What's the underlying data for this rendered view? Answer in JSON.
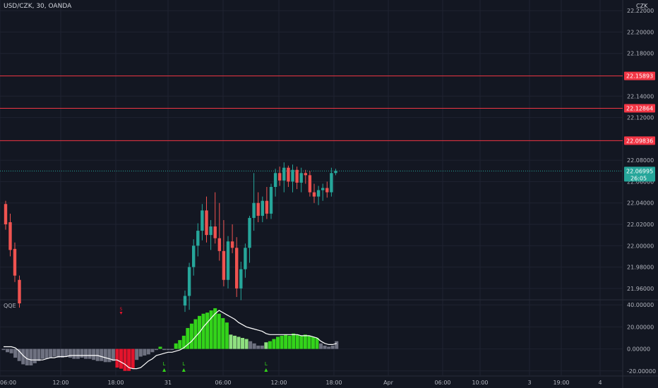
{
  "header": {
    "symbol_label": "USD/CZK, 30, OANDA",
    "currency": "CZK"
  },
  "indicator": {
    "label": "QQE"
  },
  "colors": {
    "background": "#131722",
    "grid": "#1f2331",
    "text": "#b2b5be",
    "up_candle": "#26a69a",
    "down_candle": "#ef5350",
    "bright_up": "#43d11f",
    "level_line": "#f23645",
    "current_price": "#26a69a",
    "qqe_up": "#33d31a",
    "qqe_light": "#8fe080",
    "qqe_down": "#e3142c",
    "qqe_neutral": "#6e7180",
    "qqe_line": "#ffffff"
  },
  "chart_data": [
    {
      "type": "candlestick",
      "ylim": [
        21.95,
        22.23
      ],
      "yticks": [
        "22.22000",
        "22.20000",
        "22.18000",
        "22.14000",
        "22.12000",
        "22.08000",
        "22.06000",
        "22.04000",
        "22.02000",
        "22.00000",
        "21.98000",
        "21.96000"
      ],
      "xticks": [
        "06:00",
        "12:00",
        "18:00",
        "31",
        "06:00",
        "12:00",
        "18:00",
        "Apr",
        "06:00",
        "10:00",
        "3",
        "19:00",
        "4"
      ],
      "levels": [
        {
          "value": 22.15893,
          "label": "22.15893"
        },
        {
          "value": 22.12864,
          "label": "22.12864"
        },
        {
          "value": 22.09836,
          "label": "22.09836"
        }
      ],
      "current_price": {
        "value": 22.06995,
        "label": "22.06995",
        "countdown": "26:05"
      },
      "candles_part1": [
        [
          22.039,
          22.042,
          22.015,
          22.02
        ],
        [
          22.022,
          22.03,
          21.99,
          21.996
        ],
        [
          21.997,
          22.003,
          21.966,
          21.972
        ],
        [
          21.968,
          21.972,
          21.942,
          21.946
        ]
      ],
      "candles_part2": [
        [
          21.944,
          21.958,
          21.938,
          21.953
        ],
        [
          21.953,
          21.984,
          21.94,
          21.98
        ],
        [
          21.98,
          22.006,
          21.972,
          22.0
        ],
        [
          22.0,
          22.021,
          21.99,
          22.014
        ],
        [
          22.014,
          22.039,
          22.005,
          22.033
        ],
        [
          22.033,
          22.046,
          22.003,
          22.01
        ],
        [
          22.01,
          22.024,
          21.996,
          22.018
        ],
        [
          22.018,
          22.05,
          22.002,
          22.007
        ],
        [
          22.007,
          22.04,
          21.986,
          21.995
        ],
        [
          21.995,
          22.024,
          21.962,
          21.968
        ],
        [
          21.968,
          22.009,
          21.96,
          22.004
        ],
        [
          22.004,
          22.02,
          21.993,
          21.998
        ],
        [
          21.998,
          22.008,
          21.952,
          21.96
        ],
        [
          21.96,
          21.985,
          21.949,
          21.978
        ],
        [
          21.978,
          22.002,
          21.97,
          21.998
        ],
        [
          21.998,
          22.028,
          21.984,
          22.026
        ],
        [
          22.026,
          22.068,
          22.014,
          22.04
        ],
        [
          22.04,
          22.05,
          22.022,
          22.028
        ],
        [
          22.028,
          22.046,
          22.022,
          22.042
        ],
        [
          22.042,
          22.055,
          22.025,
          22.03
        ],
        [
          22.03,
          22.058,
          22.025,
          22.055
        ],
        [
          22.055,
          22.072,
          22.046,
          22.068
        ],
        [
          22.068,
          22.074,
          22.056,
          22.061
        ],
        [
          22.061,
          22.078,
          22.05,
          22.073
        ],
        [
          22.073,
          22.075,
          22.055,
          22.06
        ],
        [
          22.06,
          22.076,
          22.05,
          22.071
        ],
        [
          22.071,
          22.074,
          22.053,
          22.059
        ],
        [
          22.059,
          22.073,
          22.05,
          22.068
        ],
        [
          22.068,
          22.071,
          22.058,
          22.066
        ],
        [
          22.066,
          22.07,
          22.046,
          22.05
        ],
        [
          22.05,
          22.058,
          22.04,
          22.046
        ],
        [
          22.046,
          22.056,
          22.038,
          22.052
        ],
        [
          22.052,
          22.058,
          22.042,
          22.054
        ],
        [
          22.054,
          22.06,
          22.045,
          22.05
        ],
        [
          22.05,
          22.073,
          22.046,
          22.068
        ],
        [
          22.068,
          22.072,
          22.066,
          22.07
        ]
      ]
    },
    {
      "type": "bar",
      "title": "QQE",
      "ylim": [
        -24,
        44
      ],
      "yticks": [
        "40.00000",
        "20.00000",
        "0.00000",
        "-20.00000"
      ],
      "bars": [
        [
          -1,
          "n"
        ],
        [
          -3,
          "n"
        ],
        [
          -4,
          "n"
        ],
        [
          -8,
          "n"
        ],
        [
          -11,
          "n"
        ],
        [
          -14,
          "n"
        ],
        [
          -15,
          "n"
        ],
        [
          -15,
          "n"
        ],
        [
          -13,
          "n"
        ],
        [
          -11,
          "n"
        ],
        [
          -9,
          "n"
        ],
        [
          -9,
          "n"
        ],
        [
          -8,
          "n"
        ],
        [
          -7,
          "n"
        ],
        [
          -8,
          "n"
        ],
        [
          -8,
          "n"
        ],
        [
          -7,
          "n"
        ],
        [
          -8,
          "n"
        ],
        [
          -9,
          "n"
        ],
        [
          -9,
          "n"
        ],
        [
          -8,
          "n"
        ],
        [
          -9,
          "n"
        ],
        [
          -9,
          "n"
        ],
        [
          -10,
          "n"
        ],
        [
          -11,
          "n"
        ],
        [
          -11,
          "n"
        ],
        [
          -12,
          "n"
        ],
        [
          -12,
          "n"
        ],
        [
          -11,
          "n"
        ],
        [
          -17,
          "d"
        ],
        [
          -18,
          "d"
        ],
        [
          -20,
          "d"
        ],
        [
          -20,
          "d"
        ],
        [
          -18,
          "d"
        ],
        [
          -10,
          "n"
        ],
        [
          -7,
          "n"
        ],
        [
          -6,
          "n"
        ],
        [
          -5,
          "n"
        ],
        [
          -3,
          "n"
        ],
        [
          -1,
          "n"
        ],
        [
          2,
          "u"
        ],
        [
          -1,
          "n"
        ],
        [
          -1,
          "n"
        ],
        [
          -1,
          "n"
        ],
        [
          5,
          "u"
        ],
        [
          8,
          "u"
        ],
        [
          12,
          "u"
        ],
        [
          19,
          "u"
        ],
        [
          23,
          "u"
        ],
        [
          27,
          "u"
        ],
        [
          30,
          "u"
        ],
        [
          32,
          "u"
        ],
        [
          33,
          "u"
        ],
        [
          35,
          "u"
        ],
        [
          37,
          "u"
        ],
        [
          32,
          "u"
        ],
        [
          28,
          "u"
        ],
        [
          24,
          "u"
        ],
        [
          13,
          "l"
        ],
        [
          12,
          "l"
        ],
        [
          11,
          "l"
        ],
        [
          10,
          "l"
        ],
        [
          9,
          "l"
        ],
        [
          7,
          "n"
        ],
        [
          5,
          "n"
        ],
        [
          3,
          "n"
        ],
        [
          3,
          "n"
        ],
        [
          6,
          "l"
        ],
        [
          7,
          "u"
        ],
        [
          9,
          "u"
        ],
        [
          11,
          "u"
        ],
        [
          12,
          "u"
        ],
        [
          13,
          "u"
        ],
        [
          12,
          "u"
        ],
        [
          14,
          "u"
        ],
        [
          13,
          "u"
        ],
        [
          12,
          "u"
        ],
        [
          13,
          "u"
        ],
        [
          12,
          "u"
        ],
        [
          11,
          "u"
        ],
        [
          10,
          "u"
        ],
        [
          5,
          "n"
        ],
        [
          3,
          "n"
        ],
        [
          2,
          "n"
        ],
        [
          3,
          "n"
        ],
        [
          7,
          "n"
        ]
      ],
      "line": [
        2,
        2,
        2,
        1,
        -2,
        -6,
        -9,
        -10,
        -10,
        -10,
        -10,
        -9,
        -8,
        -8,
        -7,
        -7,
        -7,
        -6,
        -6,
        -6,
        -6,
        -6,
        -6,
        -6,
        -6,
        -7,
        -8,
        -9,
        -10,
        -10,
        -12,
        -14,
        -17,
        -18,
        -18,
        -17,
        -14,
        -11,
        -9,
        -6,
        -5,
        -4,
        -3,
        -3,
        -2,
        -1,
        1,
        4,
        7,
        11,
        15,
        20,
        24,
        28,
        32,
        35,
        33,
        31,
        29,
        27,
        24,
        22,
        20,
        19,
        18,
        17,
        16,
        14,
        13,
        13,
        13,
        13,
        13,
        13,
        13,
        13,
        12,
        12,
        12,
        11,
        10,
        7,
        5,
        4,
        4,
        5
      ],
      "markers": [
        {
          "x_index": 30,
          "text": "S",
          "color": "#e3142c",
          "pos": "top"
        },
        {
          "x_index": 41,
          "text": "L",
          "color": "#33d31a",
          "pos": "bottom"
        },
        {
          "x_index": 46,
          "text": "L",
          "color": "#33d31a",
          "pos": "bottom"
        },
        {
          "x_index": 67,
          "text": "L",
          "color": "#33d31a",
          "pos": "bottom"
        }
      ]
    }
  ]
}
